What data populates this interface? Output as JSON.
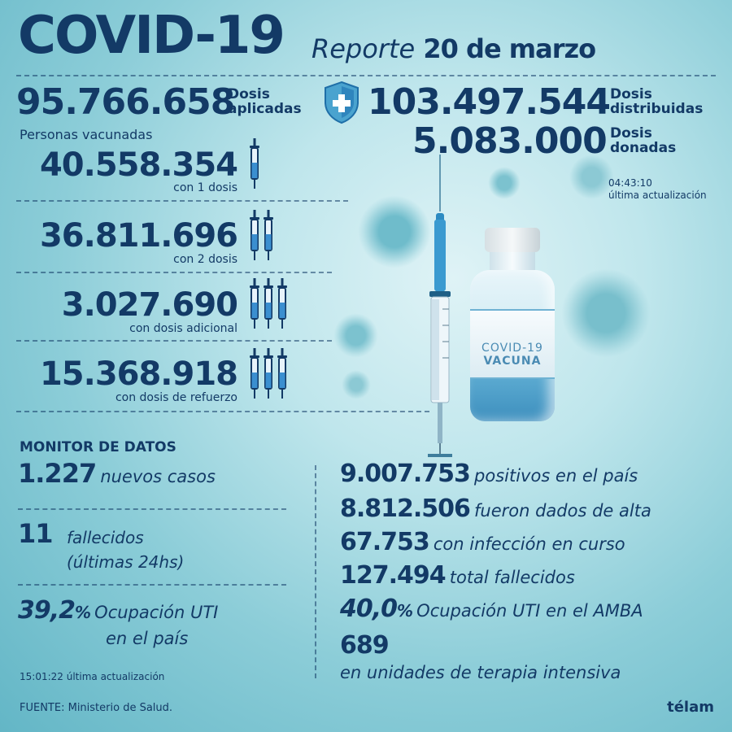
{
  "header": {
    "title": "COVID-19",
    "report_word": "Reporte",
    "report_date": "20 de marzo"
  },
  "doses": {
    "applied_value": "95.766.658",
    "applied_label_1": "Dosis",
    "applied_label_2": "aplicadas",
    "distributed_value": "103.497.544",
    "distributed_label_1": "Dosis",
    "distributed_label_2": "distribuidas",
    "donated_value": "5.083.000",
    "donated_label_1": "Dosis",
    "donated_label_2": "donadas",
    "update_time": "04:43:10",
    "update_label": "última actualización"
  },
  "vaccinated": {
    "title": "Personas vacunadas",
    "rows": [
      {
        "value": "40.558.354",
        "label": "con 1 dosis",
        "syringes": 1
      },
      {
        "value": "36.811.696",
        "label": "con 2 dosis",
        "syringes": 2
      },
      {
        "value": "3.027.690",
        "label": "con dosis adicional",
        "syringes": 3
      },
      {
        "value": "15.368.918",
        "label": "con dosis de refuerzo",
        "syringes": 3
      }
    ]
  },
  "vial": {
    "line1": "COVID-19",
    "line2": "VACUNA"
  },
  "monitor": {
    "title": "MONITOR DE DATOS",
    "new_cases_value": "1.227",
    "new_cases_label": "nuevos casos",
    "deaths_value": "11",
    "deaths_label_1": "fallecidos",
    "deaths_label_2": "(últimas 24hs)",
    "icu_value": "39,2",
    "icu_pct": "%",
    "icu_label_1": "Ocupación UTI",
    "icu_label_2": "en el país",
    "update_time": "15:01:22",
    "update_label": "última actualización",
    "right": {
      "positives_value": "9.007.753",
      "positives_label": "positivos en el país",
      "discharged_value": "8.812.506",
      "discharged_label": "fueron dados de alta",
      "active_value": "67.753",
      "active_label": "con infección en curso",
      "total_deaths_value": "127.494",
      "total_deaths_label": "total fallecidos",
      "amba_value": "40,0",
      "amba_pct": "%",
      "amba_label": "Ocupación UTI en el AMBA",
      "icu_units_value": "689",
      "icu_units_label": "en unidades de terapia intensiva"
    }
  },
  "footer": {
    "source": "FUENTE: Ministerio de Salud.",
    "brand": "télam"
  },
  "colors": {
    "navy": "#133a66",
    "teal_bg": "#8ccdd8",
    "vial_blue": "#5aa9d0"
  }
}
